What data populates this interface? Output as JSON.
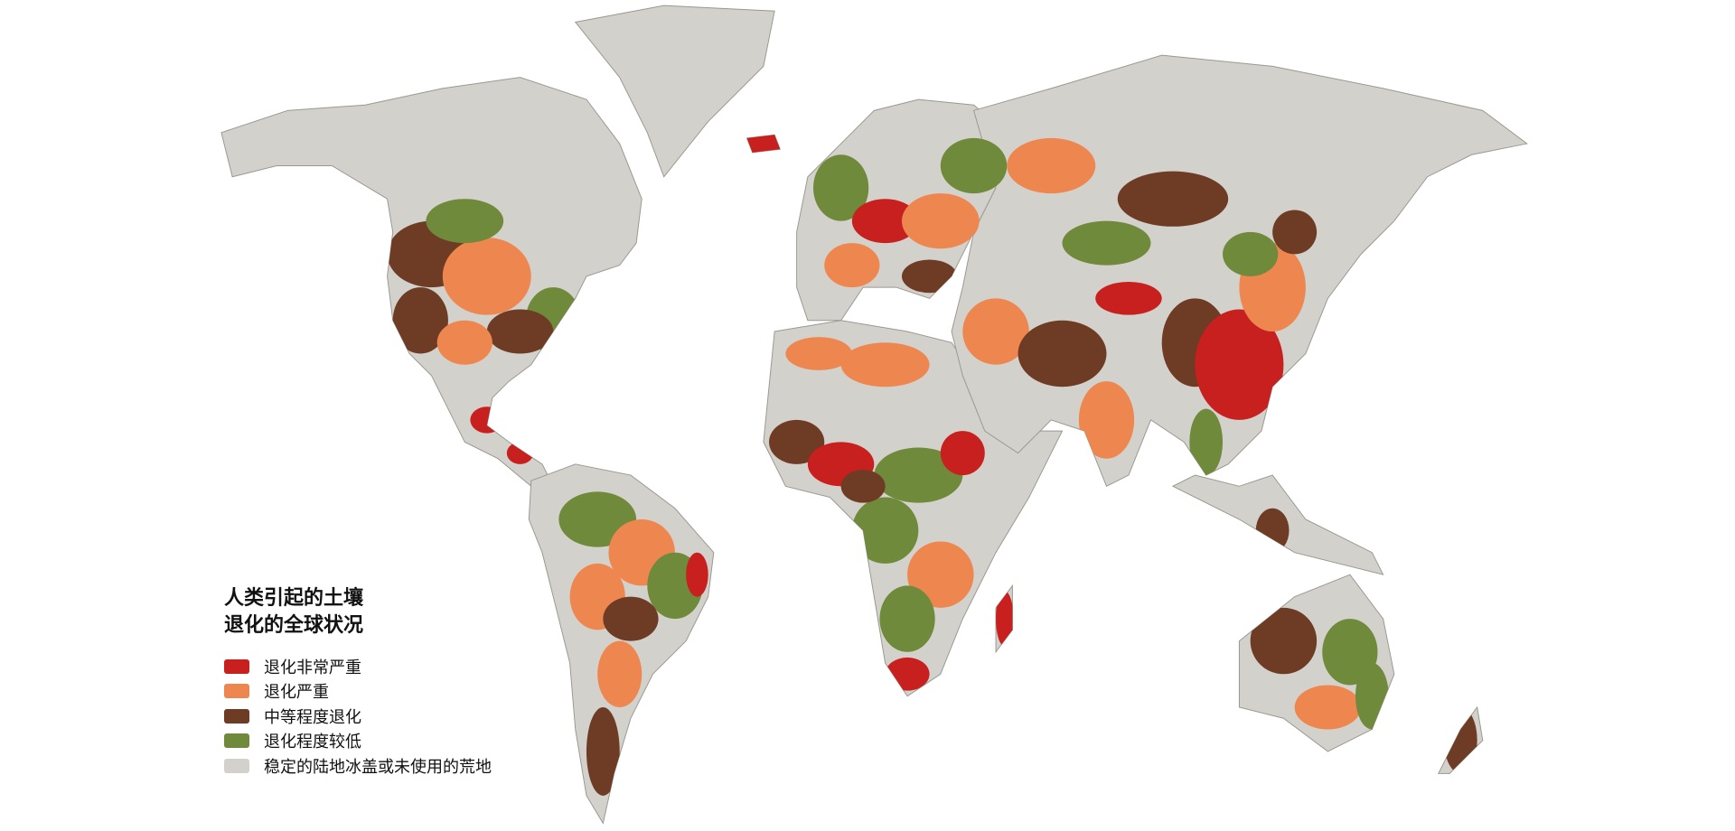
{
  "legend": {
    "title_line1": "人类引起的土壤",
    "title_line2": "退化的全球状况",
    "items": [
      {
        "label": "退化非常严重",
        "color": "#c8201e"
      },
      {
        "label": "退化严重",
        "color": "#ee8650"
      },
      {
        "label": "中等程度退化",
        "color": "#6e3b24"
      },
      {
        "label": "退化程度较低",
        "color": "#6e8a3a"
      },
      {
        "label": "稳定的陆地冰盖或未使用的荒地",
        "color": "#d3d1cb"
      }
    ]
  }
}
